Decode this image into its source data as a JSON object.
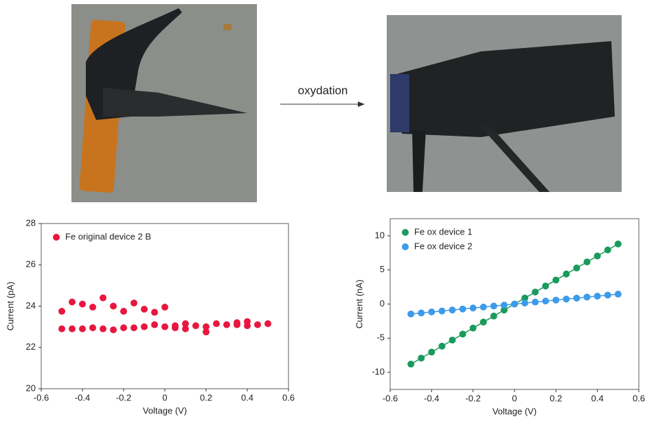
{
  "annotation": "oxydation",
  "chart_data": [
    {
      "type": "scatter",
      "x_label": "Voltage (V)",
      "y_label": "Current (pA)",
      "xlim": [
        -0.6,
        0.6
      ],
      "xticks": [
        -0.6,
        -0.4,
        -0.2,
        0,
        0.2,
        0.4,
        0.6
      ],
      "ylim": [
        20,
        28
      ],
      "yticks": [
        20,
        22,
        24,
        26,
        28
      ],
      "legend": "upper left",
      "x": [
        -0.5,
        -0.45,
        -0.4,
        -0.35,
        -0.3,
        -0.25,
        -0.2,
        -0.15,
        -0.1,
        -0.05,
        0,
        -0.5,
        -0.45,
        -0.4,
        -0.35,
        -0.3,
        -0.25,
        -0.2,
        -0.15,
        -0.1,
        -0.05,
        0,
        0.05,
        0.05,
        0.1,
        0.1,
        0.15,
        0.2,
        0.2,
        0.25,
        0.3,
        0.35,
        0.35,
        0.4,
        0.4,
        0.45,
        0.5
      ],
      "series": [
        {
          "name": "Fe original device 2 B",
          "color": "#e8173f",
          "values": [
            23.75,
            24.2,
            24.1,
            23.95,
            24.4,
            24.0,
            23.75,
            24.15,
            23.85,
            23.7,
            23.95,
            22.9,
            22.9,
            22.9,
            22.95,
            22.9,
            22.85,
            22.95,
            22.95,
            23.0,
            23.1,
            23.0,
            22.95,
            23.05,
            23.15,
            22.9,
            23.05,
            23.0,
            22.75,
            23.15,
            23.1,
            23.1,
            23.2,
            23.05,
            23.25,
            23.1,
            23.15
          ]
        }
      ]
    },
    {
      "type": "line",
      "markers": true,
      "x_label": "Voltage (V)",
      "y_label": "Current (nA)",
      "xlim": [
        -0.6,
        0.6
      ],
      "xticks": [
        -0.6,
        -0.4,
        -0.2,
        0,
        0.2,
        0.4,
        0.6
      ],
      "ylim": [
        -12.5,
        12.5
      ],
      "yticks": [
        -10,
        -5,
        0,
        5,
        10
      ],
      "legend": "upper left",
      "x": [
        -0.5,
        -0.45,
        -0.4,
        -0.35,
        -0.3,
        -0.25,
        -0.2,
        -0.15,
        -0.1,
        -0.05,
        0,
        0.05,
        0.1,
        0.15,
        0.2,
        0.25,
        0.3,
        0.35,
        0.4,
        0.45,
        0.5
      ],
      "series": [
        {
          "name": "Fe ox device 1",
          "color": "#1a9a5c",
          "values": [
            -8.8,
            -7.92,
            -7.04,
            -6.16,
            -5.28,
            -4.4,
            -3.52,
            -2.64,
            -1.76,
            -0.88,
            0,
            0.88,
            1.76,
            2.64,
            3.52,
            4.4,
            5.28,
            6.16,
            7.04,
            7.92,
            8.8
          ]
        },
        {
          "name": "Fe ox device 2",
          "color": "#3d9be9",
          "values": [
            -1.45,
            -1.31,
            -1.16,
            -1.02,
            -0.87,
            -0.73,
            -0.58,
            -0.44,
            -0.29,
            -0.15,
            0,
            0.15,
            0.29,
            0.44,
            0.58,
            0.73,
            0.87,
            1.02,
            1.16,
            1.31,
            1.45
          ]
        }
      ]
    }
  ]
}
